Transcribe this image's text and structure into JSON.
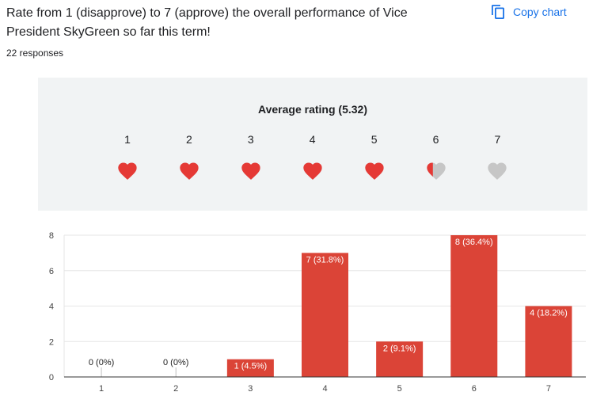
{
  "question": "Rate from 1 (disapprove) to 7 (approve) the overall performance of Vice President SkyGreen so far this term!",
  "responses": "22 responses",
  "copy_chart_label": "Copy chart",
  "rating": {
    "title": "Average rating (5.32)",
    "average": 5.32,
    "scale": [
      "1",
      "2",
      "3",
      "4",
      "5",
      "6",
      "7"
    ],
    "filled_color": "#e53935",
    "empty_color": "#c6c6c6"
  },
  "chart_data": {
    "type": "bar",
    "categories": [
      "1",
      "2",
      "3",
      "4",
      "5",
      "6",
      "7"
    ],
    "values": [
      0,
      0,
      1,
      7,
      2,
      8,
      4
    ],
    "data_labels": [
      "0 (0%)",
      "0 (0%)",
      "1 (4.5%)",
      "7 (31.8%)",
      "2 (9.1%)",
      "8 (36.4%)",
      "4 (18.2%)"
    ],
    "yticks": [
      "0",
      "2",
      "4",
      "6",
      "8"
    ],
    "ylim": [
      0,
      8
    ],
    "color": "#db4437",
    "grid": true,
    "title": "",
    "xlabel": "",
    "ylabel": ""
  }
}
